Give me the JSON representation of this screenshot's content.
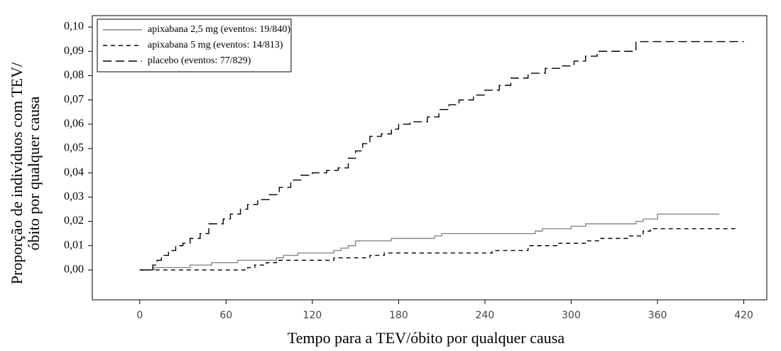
{
  "chart_data": {
    "type": "step",
    "x_label": "Tempo para a TEV/óbito por qualquer causa",
    "y_label": [
      "Proporção de indivíduos com TEV/",
      "óbito por qualquer causa"
    ],
    "xlim": [
      -33,
      436
    ],
    "ylim": [
      -0.0123,
      0.1047
    ],
    "xticks": [
      0,
      60,
      120,
      180,
      240,
      300,
      360,
      420
    ],
    "yticks": [
      {
        "value": 0,
        "label": "0,00"
      },
      {
        "value": 0.01,
        "label": "0,01"
      },
      {
        "value": 0.02,
        "label": "0,02"
      },
      {
        "value": 0.03,
        "label": "0,03"
      },
      {
        "value": 0.04,
        "label": "0,04"
      },
      {
        "value": 0.05,
        "label": "0,05"
      },
      {
        "value": 0.06,
        "label": "0,06"
      },
      {
        "value": 0.07,
        "label": "0,07"
      },
      {
        "value": 0.08,
        "label": "0,08"
      },
      {
        "value": 0.09,
        "label": "0,09"
      },
      {
        "value": 0.1,
        "label": "0,10"
      }
    ],
    "legend": "upper left",
    "series": [
      {
        "name": "apixabana 2,5 mg (eventos: 19/840)",
        "color": "#888888",
        "dash": "solid",
        "x": [
          0,
          10,
          35,
          50,
          68,
          95,
          100,
          110,
          135,
          140,
          145,
          150,
          175,
          205,
          210,
          275,
          280,
          300,
          310,
          345,
          350,
          360,
          403
        ],
        "values": [
          0,
          0.001,
          0.002,
          0.003,
          0.004,
          0.005,
          0.006,
          0.007,
          0.008,
          0.009,
          0.01,
          0.012,
          0.013,
          0.014,
          0.015,
          0.016,
          0.017,
          0.018,
          0.019,
          0.02,
          0.021,
          0.023,
          0.023
        ]
      },
      {
        "name": "apixabana 5 mg (eventos: 14/813)",
        "color": "#000000",
        "dash": "short",
        "x": [
          0,
          10,
          75,
          80,
          88,
          95,
          135,
          160,
          170,
          245,
          270,
          290,
          310,
          320,
          340,
          350,
          355,
          415
        ],
        "values": [
          0,
          0,
          0.001,
          0.002,
          0.003,
          0.004,
          0.005,
          0.006,
          0.007,
          0.008,
          0.01,
          0.011,
          0.012,
          0.013,
          0.014,
          0.016,
          0.017,
          0.017
        ]
      },
      {
        "name": "placebo (eventos: 77/829)",
        "color": "#000000",
        "dash": "long",
        "x": [
          0,
          8,
          9,
          12,
          15,
          20,
          25,
          30,
          35,
          42,
          48,
          58,
          63,
          70,
          75,
          82,
          90,
          97,
          105,
          112,
          120,
          130,
          138,
          145,
          150,
          155,
          160,
          168,
          175,
          180,
          188,
          200,
          208,
          215,
          222,
          232,
          240,
          250,
          258,
          270,
          282,
          292,
          302,
          310,
          318,
          345,
          420
        ],
        "values": [
          0,
          0,
          0.002,
          0.004,
          0.006,
          0.008,
          0.01,
          0.011,
          0.013,
          0.015,
          0.019,
          0.021,
          0.023,
          0.025,
          0.027,
          0.029,
          0.031,
          0.034,
          0.037,
          0.039,
          0.04,
          0.041,
          0.042,
          0.046,
          0.049,
          0.052,
          0.055,
          0.056,
          0.058,
          0.06,
          0.061,
          0.063,
          0.066,
          0.068,
          0.07,
          0.072,
          0.074,
          0.076,
          0.079,
          0.081,
          0.083,
          0.084,
          0.086,
          0.088,
          0.09,
          0.094,
          0.094
        ]
      }
    ]
  }
}
